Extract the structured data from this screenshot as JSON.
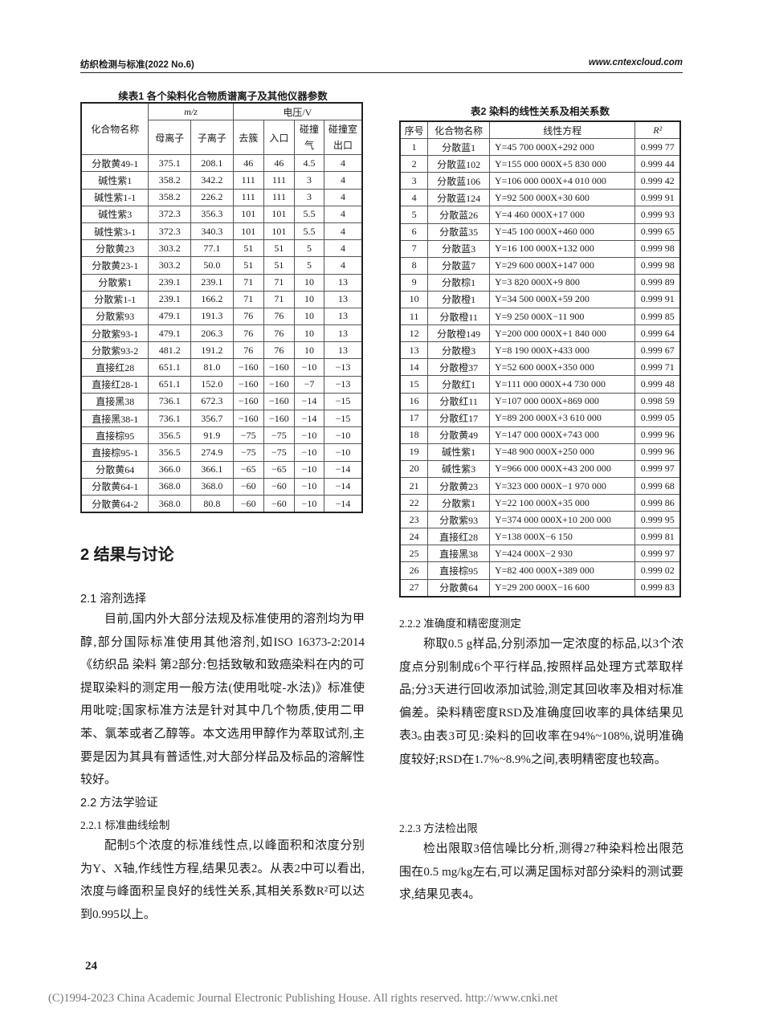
{
  "header": {
    "journal": "纺织检测与标准(2022 No.6)",
    "website": "www.cntexcloud.com"
  },
  "table1": {
    "caption": "续表1   各个染料化合物质谱离子及其他仪器参数",
    "headers": {
      "name": "化合物名称",
      "mz": "m/z",
      "voltage": "电压/V",
      "parent": "母离子",
      "daughter": "子离子",
      "declustering": "去簇",
      "entrance": "入口",
      "collision_gas": "碰撞气",
      "cell_exit": "碰撞室出口"
    },
    "rows": [
      [
        "分散黄49-1",
        "375.1",
        "208.1",
        "46",
        "46",
        "4.5",
        "4"
      ],
      [
        "碱性紫1",
        "358.2",
        "342.2",
        "111",
        "111",
        "3",
        "4"
      ],
      [
        "碱性紫1-1",
        "358.2",
        "226.2",
        "111",
        "111",
        "3",
        "4"
      ],
      [
        "碱性紫3",
        "372.3",
        "356.3",
        "101",
        "101",
        "5.5",
        "4"
      ],
      [
        "碱性紫3-1",
        "372.3",
        "340.3",
        "101",
        "101",
        "5.5",
        "4"
      ],
      [
        "分散黄23",
        "303.2",
        "77.1",
        "51",
        "51",
        "5",
        "4"
      ],
      [
        "分散黄23-1",
        "303.2",
        "50.0",
        "51",
        "51",
        "5",
        "4"
      ],
      [
        "分散紫1",
        "239.1",
        "239.1",
        "71",
        "71",
        "10",
        "13"
      ],
      [
        "分散紫1-1",
        "239.1",
        "166.2",
        "71",
        "71",
        "10",
        "13"
      ],
      [
        "分散紫93",
        "479.1",
        "191.3",
        "76",
        "76",
        "10",
        "13"
      ],
      [
        "分散紫93-1",
        "479.1",
        "206.3",
        "76",
        "76",
        "10",
        "13"
      ],
      [
        "分散紫93-2",
        "481.2",
        "191.2",
        "76",
        "76",
        "10",
        "13"
      ],
      [
        "直接红28",
        "651.1",
        "81.0",
        "−160",
        "−160",
        "−10",
        "−13"
      ],
      [
        "直接红28-1",
        "651.1",
        "152.0",
        "−160",
        "−160",
        "−7",
        "−13"
      ],
      [
        "直接黑38",
        "736.1",
        "672.3",
        "−160",
        "−160",
        "−14",
        "−15"
      ],
      [
        "直接黑38-1",
        "736.1",
        "356.7",
        "−160",
        "−160",
        "−14",
        "−15"
      ],
      [
        "直接棕95",
        "356.5",
        "91.9",
        "−75",
        "−75",
        "−10",
        "−10"
      ],
      [
        "直接棕95-1",
        "356.5",
        "274.9",
        "−75",
        "−75",
        "−10",
        "−10"
      ],
      [
        "分散黄64",
        "366.0",
        "366.1",
        "−65",
        "−65",
        "−10",
        "−14"
      ],
      [
        "分散黄64-1",
        "368.0",
        "368.0",
        "−60",
        "−60",
        "−10",
        "−14"
      ],
      [
        "分散黄64-2",
        "368.0",
        "80.8",
        "−60",
        "−60",
        "−10",
        "−14"
      ]
    ]
  },
  "table2": {
    "caption": "表2   染料的线性关系及相关系数",
    "headers": [
      "序号",
      "化合物名称",
      "线性方程",
      "R²"
    ],
    "rows": [
      [
        "1",
        "分散蓝1",
        "Y=45 700 000X+292 000",
        "0.999 77"
      ],
      [
        "2",
        "分散蓝102",
        "Y=155 000 000X+5 830 000",
        "0.999 44"
      ],
      [
        "3",
        "分散蓝106",
        "Y=106 000 000X+4 010 000",
        "0.999 42"
      ],
      [
        "4",
        "分散蓝124",
        "Y=92 500 000X+30 600",
        "0.999 91"
      ],
      [
        "5",
        "分散蓝26",
        "Y=4 460 000X+17 000",
        "0.999 93"
      ],
      [
        "6",
        "分散蓝35",
        "Y=45 100 000X+460 000",
        "0.999 65"
      ],
      [
        "7",
        "分散蓝3",
        "Y=16 100 000X+132 000",
        "0.999 98"
      ],
      [
        "8",
        "分散蓝7",
        "Y=29 600 000X+147 000",
        "0.999 98"
      ],
      [
        "9",
        "分散棕1",
        "Y=3 820 000X+9 800",
        "0.999 89"
      ],
      [
        "10",
        "分散橙1",
        "Y=34 500 000X+59 200",
        "0.999 91"
      ],
      [
        "11",
        "分散橙11",
        "Y=9 250 000X−11 900",
        "0.999 85"
      ],
      [
        "12",
        "分散橙149",
        "Y=200 000 000X+1 840 000",
        "0.999 64"
      ],
      [
        "13",
        "分散橙3",
        "Y=8 190 000X+433 000",
        "0.999 67"
      ],
      [
        "14",
        "分散橙37",
        "Y=52 600 000X+350 000",
        "0.999 71"
      ],
      [
        "15",
        "分散红1",
        "Y=111 000 000X+4 730 000",
        "0.999 48"
      ],
      [
        "16",
        "分散红11",
        "Y=107 000 000X+869 000",
        "0.998 59"
      ],
      [
        "17",
        "分散红17",
        "Y=89 200 000X+3 610 000",
        "0.999 05"
      ],
      [
        "18",
        "分散黄49",
        "Y=147 000 000X+743 000",
        "0.999 96"
      ],
      [
        "19",
        "碱性紫1",
        "Y=48 900 000X+250 000",
        "0.999 96"
      ],
      [
        "20",
        "碱性紫3",
        "Y=966 000 000X+43 200 000",
        "0.999 97"
      ],
      [
        "21",
        "分散黄23",
        "Y=323 000 000X−1 970 000",
        "0.999 68"
      ],
      [
        "22",
        "分散紫1",
        "Y=22 100 000X+35 000",
        "0.999 86"
      ],
      [
        "23",
        "分散紫93",
        "Y=374 000 000X+10 200 000",
        "0.999 95"
      ],
      [
        "24",
        "直接红28",
        "Y=138 000X−6 150",
        "0.999 81"
      ],
      [
        "25",
        "直接黑38",
        "Y=424 000X−2 930",
        "0.999 97"
      ],
      [
        "26",
        "直接棕95",
        "Y=82 400 000X+389 000",
        "0.999 02"
      ],
      [
        "27",
        "分散黄64",
        "Y=29 200 000X−16 600",
        "0.999 83"
      ]
    ]
  },
  "body": {
    "s2": "2   结果与讨论",
    "s21": "2.1   溶剂选择",
    "p21": "目前,国内外大部分法规及标准使用的溶剂均为甲醇,部分国际标准使用其他溶剂,如ISO 16373-2:2014《纺织品 染料 第2部分:包括致敏和致癌染料在内的可提取染料的测定用一般方法(使用吡啶-水法)》标准使用吡啶;国家标准方法是针对其中几个物质,使用二甲苯、氯苯或者乙醇等。本文选用甲醇作为萃取试剂,主要是因为其具有普适性,对大部分样品及标品的溶解性较好。",
    "s22": "2.2   方法学验证",
    "s221": "2.2.1   标准曲线绘制",
    "p221": "配制5个浓度的标准线性点,以峰面积和浓度分别为Y、X轴,作线性方程,结果见表2。从表2中可以看出,浓度与峰面积呈良好的线性关系,其相关系数R²可以达到0.995以上。",
    "s222": "2.2.2   准确度和精密度测定",
    "p222a": "称取0.5 g样品,分别添加一定浓度的标品,以3个浓度点分别制成6个平行样品,按照样品处理方式萃取样品;分3天进行回收添加试验,测定其回收率及相对标准偏差。染料精密度RSD及准确度回收率的具体结果见表3。",
    "p222b": "由表3可见:染料的回收率在94%~108%,说明准确度较好;RSD在1.7%~8.9%之间,表明精密度也较高。",
    "s223": "2.2.3   方法检出限",
    "p223": "检出限取3倍信噪比分析,测得27种染料检出限范围在0.5 mg/kg左右,可以满足国标对部分染料的测试要求,结果见表4。"
  },
  "page_number": "24",
  "footer": "(C)1994-2023 China Academic Journal Electronic Publishing House. All rights reserved.    http://www.cnki.net"
}
